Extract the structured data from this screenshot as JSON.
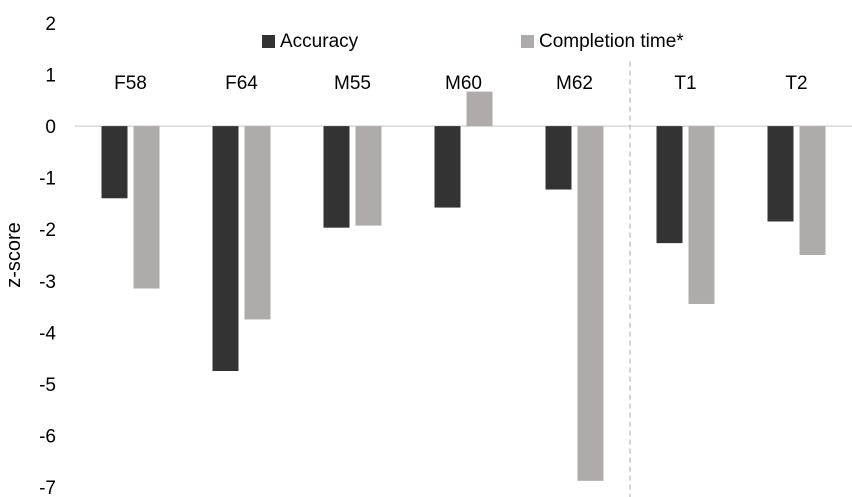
{
  "chart_data": {
    "type": "bar",
    "title": "",
    "xlabel": "",
    "ylabel": "z-score",
    "ylim": [
      -7,
      2
    ],
    "yticks": [
      2,
      1,
      0,
      -1,
      -2,
      -3,
      -4,
      -5,
      -6,
      -7
    ],
    "categories": [
      "F58",
      "F64",
      "M55",
      "M60",
      "M62",
      "T1",
      "T2"
    ],
    "series": [
      {
        "name": "Accuracy",
        "color": "#333333",
        "values": [
          -1.4,
          -4.75,
          -1.97,
          -1.58,
          -1.23,
          -2.27,
          -1.85
        ]
      },
      {
        "name": "Completion time*",
        "color": "#b0abab",
        "values": [
          -3.15,
          -3.75,
          -1.93,
          0.67,
          -6.88,
          -3.45,
          -2.5
        ]
      }
    ],
    "legend_position": "top",
    "grid": false,
    "separator_after_category": "M62"
  }
}
